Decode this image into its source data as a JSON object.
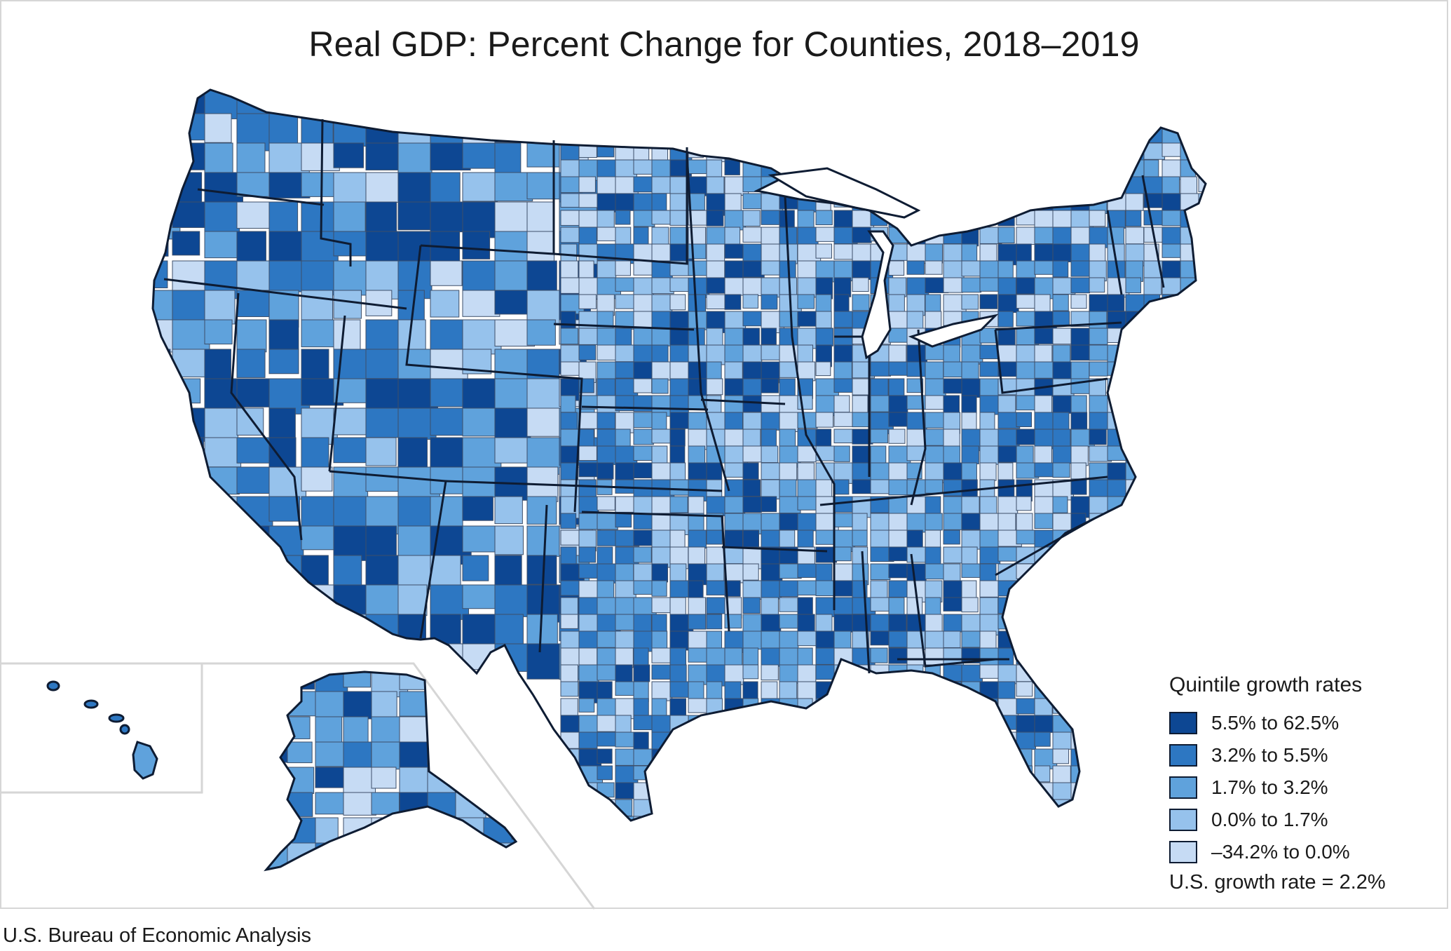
{
  "map": {
    "title": "Real GDP: Percent Change for Counties, 2018–2019",
    "subject": "county-level real GDP growth, contiguous US with Alaska and Hawaii insets"
  },
  "legend": {
    "title": "Quintile growth rates",
    "items": [
      {
        "label": "5.5% to 62.5%",
        "color": "#0d4793",
        "range": [
          5.5,
          62.5
        ]
      },
      {
        "label": "3.2% to 5.5%",
        "color": "#2d77c2",
        "range": [
          3.2,
          5.5
        ]
      },
      {
        "label": "1.7% to 3.2%",
        "color": "#5fa2dc",
        "range": [
          1.7,
          3.2
        ]
      },
      {
        "label": "0.0% to 1.7%",
        "color": "#96c2ec",
        "range": [
          0.0,
          1.7
        ]
      },
      {
        "label": "–34.2% to 0.0%",
        "color": "#c6dbf4",
        "range": [
          -34.2,
          0.0
        ]
      }
    ],
    "us_rate": "U.S. growth rate = 2.2%",
    "us_rate_value": 2.2
  },
  "footer": {
    "source": "U.S. Bureau of Economic Analysis"
  },
  "colors": {
    "state_border": "#0e1c33",
    "county_border": "#3d4f6a",
    "frame": "#d6d6d6"
  }
}
